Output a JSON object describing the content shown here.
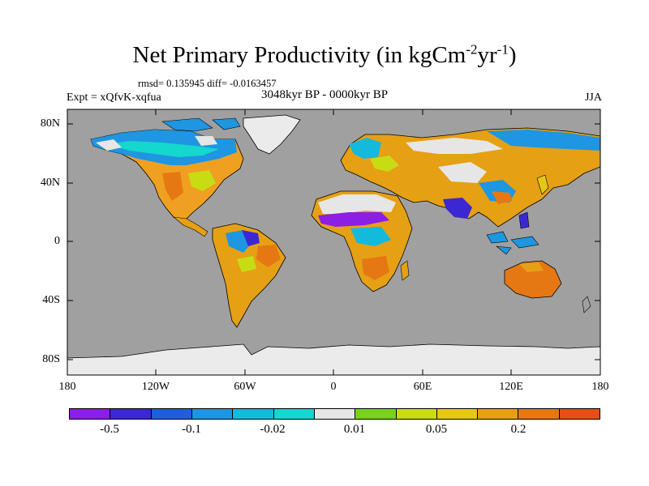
{
  "title": {
    "main": "Net Primary Productivity (in kgCm",
    "exp1": "-2",
    "mid": "yr",
    "exp2": "-1",
    "end": ")"
  },
  "stats": "rmsd= 0.135945 diff= -0.0163457",
  "experiment": "Expt = xQfvK-xqfua",
  "period": "3048kyr BP - 0000kyr BP",
  "season": "JJA",
  "lat_labels": [
    "80N",
    "40N",
    "0",
    "40S",
    "80S"
  ],
  "lon_labels": [
    "180",
    "120W",
    "60W",
    "0",
    "60E",
    "120E",
    "180"
  ],
  "colorbar": {
    "colors": [
      "#8c1ee6",
      "#3c28d2",
      "#1e5fdc",
      "#1e96e1",
      "#14b9dc",
      "#14d7cd",
      "#e6e6e6",
      "#78d21e",
      "#c8dc14",
      "#e6c814",
      "#e6a014",
      "#e67814",
      "#e65014"
    ],
    "labels": [
      "-0.5",
      "-0.1",
      "-0.02",
      "0.01",
      "0.05",
      "0.2"
    ]
  },
  "map": {
    "ocean_color": "#a0a0a0",
    "land_nodata_color": "#ebebeb"
  }
}
